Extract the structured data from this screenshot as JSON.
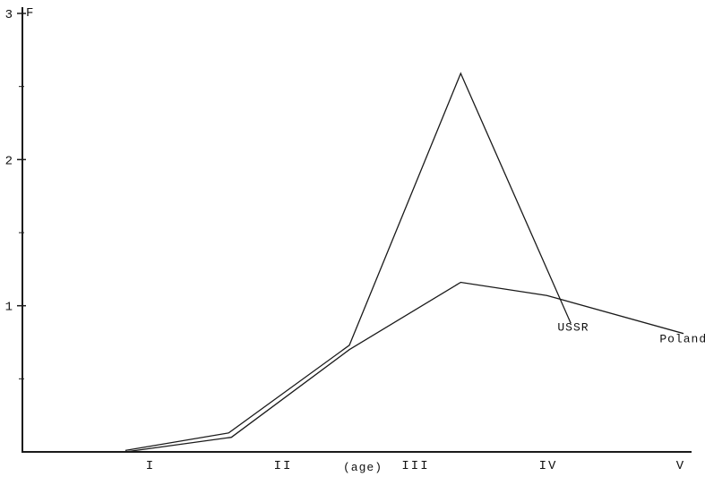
{
  "axes": {
    "y_title": "F",
    "x_caption": "(age)"
  },
  "colors": {
    "ink": "#1a1a1a",
    "background": "#ffffff"
  },
  "chart_data": {
    "type": "line",
    "title": "",
    "xlabel": "(age)",
    "ylabel": "F",
    "ylim": [
      0,
      3
    ],
    "grid": false,
    "legend_position": "inline-labels",
    "y_major_ticks": [
      1,
      2,
      3
    ],
    "y_minor_ticks": [
      0.5,
      1.5,
      2.5
    ],
    "x_ticks": [
      {
        "pos": 1,
        "label": "I"
      },
      {
        "pos": 2,
        "label": "II"
      },
      {
        "pos": 3,
        "label": "III"
      },
      {
        "pos": 4,
        "label": "IV"
      },
      {
        "pos": 5,
        "label": "V"
      }
    ],
    "series": [
      {
        "name": "USSR",
        "color": "#1a1a1a",
        "points": [
          [
            0.81,
            0.01
          ],
          [
            1.59,
            0.13
          ],
          [
            2.5,
            0.73
          ],
          [
            3.34,
            2.59
          ],
          [
            4.17,
            0.88
          ]
        ]
      },
      {
        "name": "Poland",
        "color": "#1a1a1a",
        "points": [
          [
            0.81,
            0.0
          ],
          [
            1.61,
            0.1
          ],
          [
            2.5,
            0.7
          ],
          [
            3.34,
            1.16
          ],
          [
            3.99,
            1.07
          ],
          [
            5.02,
            0.81
          ]
        ]
      }
    ],
    "annotations": [
      {
        "text": "USSR",
        "x": 4.07,
        "y": 0.83
      },
      {
        "text": "Poland",
        "x": 4.84,
        "y": 0.75
      }
    ]
  }
}
